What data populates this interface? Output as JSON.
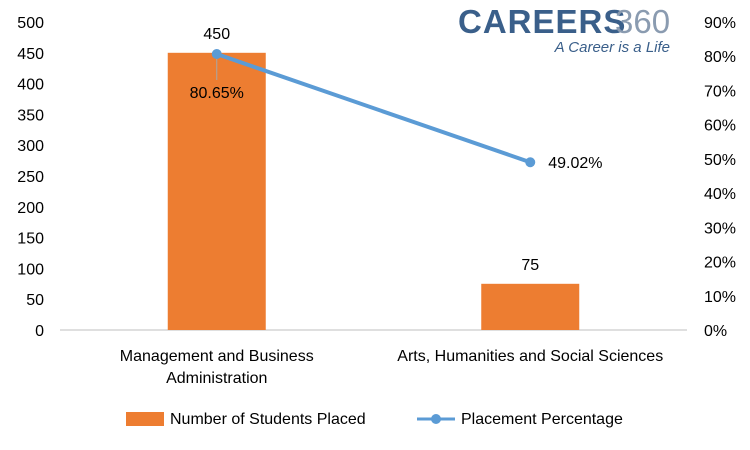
{
  "chart_data": {
    "type": "bar",
    "categories": [
      [
        "Management and Business",
        "Administration"
      ],
      [
        "Arts, Humanities and Social Sciences"
      ]
    ],
    "series": [
      {
        "name": "Number of Students Placed",
        "type": "bar",
        "axis": "left",
        "values": [
          450,
          75
        ],
        "labels": [
          "450",
          "75"
        ],
        "color": "#ed7d31"
      },
      {
        "name": "Placement Percentage",
        "type": "line",
        "axis": "right",
        "values": [
          80.65,
          49.02
        ],
        "labels": [
          "80.65%",
          "49.02%"
        ],
        "color": "#5b9bd5"
      }
    ],
    "y_left": {
      "min": 0,
      "max": 500,
      "step": 50,
      "ticks": [
        "0",
        "50",
        "100",
        "150",
        "200",
        "250",
        "300",
        "350",
        "400",
        "450",
        "500"
      ]
    },
    "y_right": {
      "min": 0,
      "max": 90,
      "step": 10,
      "ticks": [
        "0%",
        "10%",
        "20%",
        "30%",
        "40%",
        "50%",
        "60%",
        "70%",
        "80%",
        "90%"
      ]
    },
    "grid": false,
    "legend": "bottom"
  },
  "logo": {
    "main": "CAREERS",
    "number": "360",
    "tagline": "A Career is a Life"
  }
}
